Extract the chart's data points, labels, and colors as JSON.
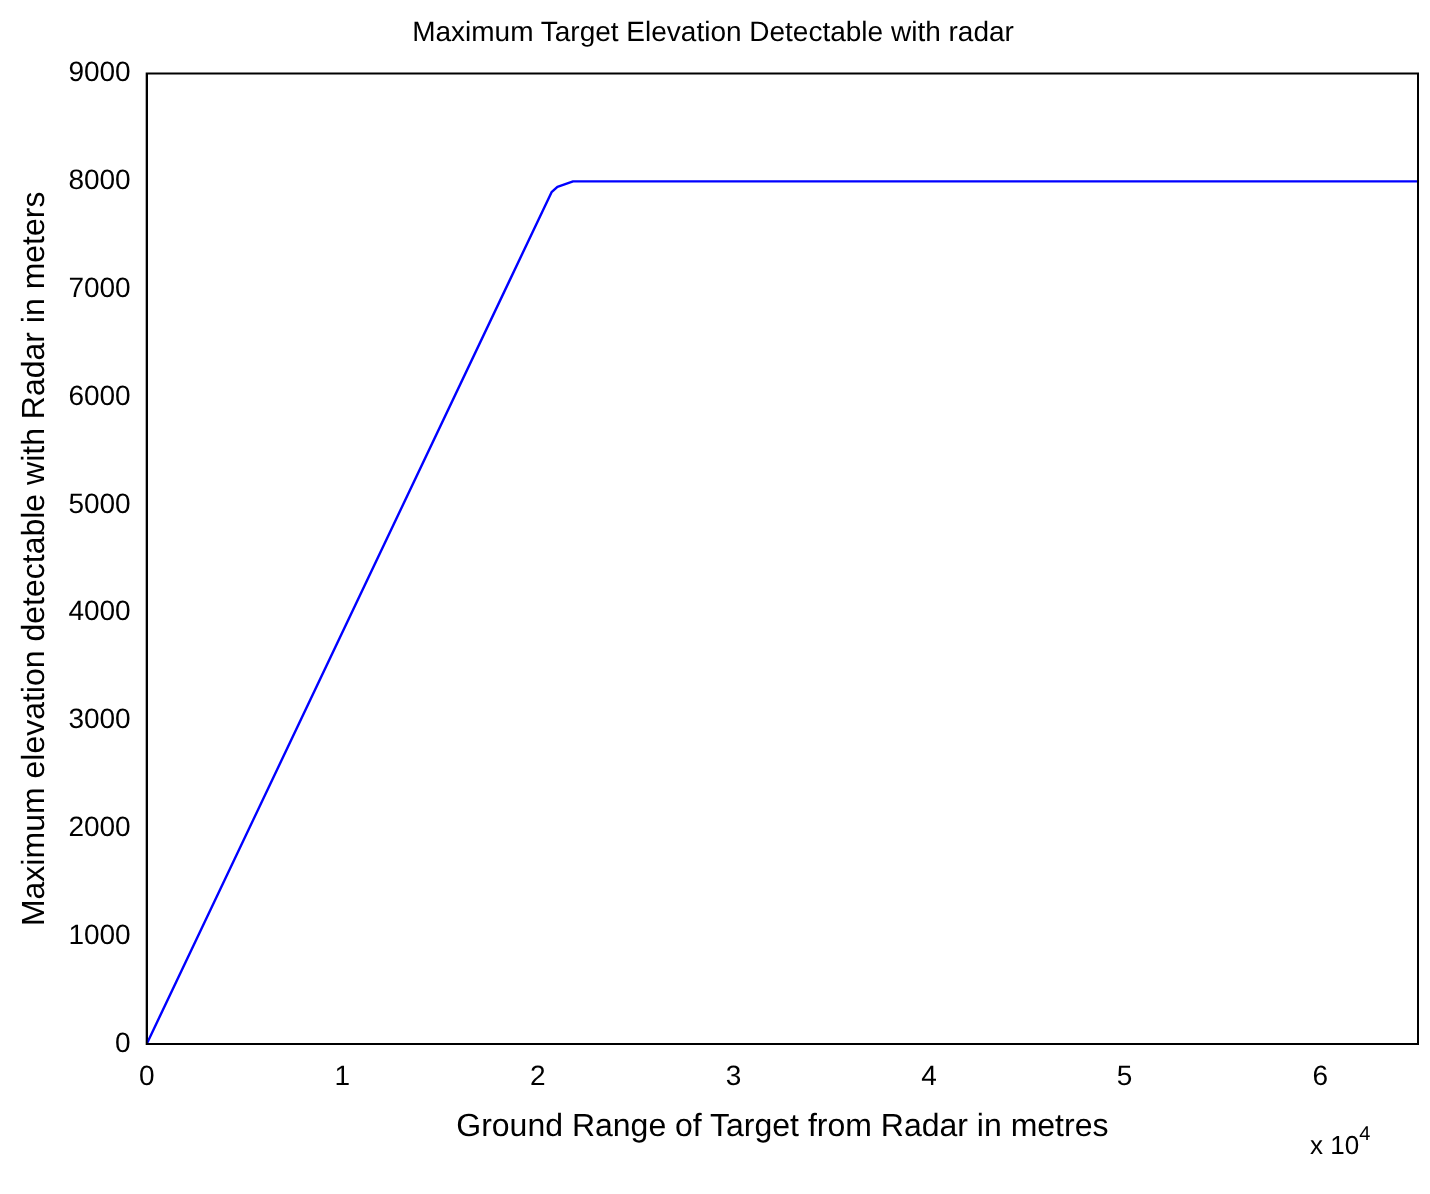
{
  "chart_data": {
    "type": "line",
    "title": "Maximum Target Elevation Detectable with radar",
    "xlabel": "Ground Range of Target from Radar in metres",
    "ylabel": "Maximum elevation detectable with Radar in meters",
    "x": [
      0,
      2.07,
      2.1,
      2.18,
      2.25,
      6.5
    ],
    "series": [
      {
        "color": "#0000ff",
        "values": [
          0,
          7900,
          7950,
          8000,
          8000,
          8000
        ]
      }
    ],
    "xlim": [
      0,
      6.5
    ],
    "xticks": [
      0,
      1,
      2,
      3,
      4,
      5,
      6
    ],
    "ylim": [
      0,
      9000
    ],
    "yticks": [
      0,
      1000,
      2000,
      3000,
      4000,
      5000,
      6000,
      7000,
      8000,
      9000
    ],
    "annotations": [
      "x 10$^{4}$"
    ]
  }
}
